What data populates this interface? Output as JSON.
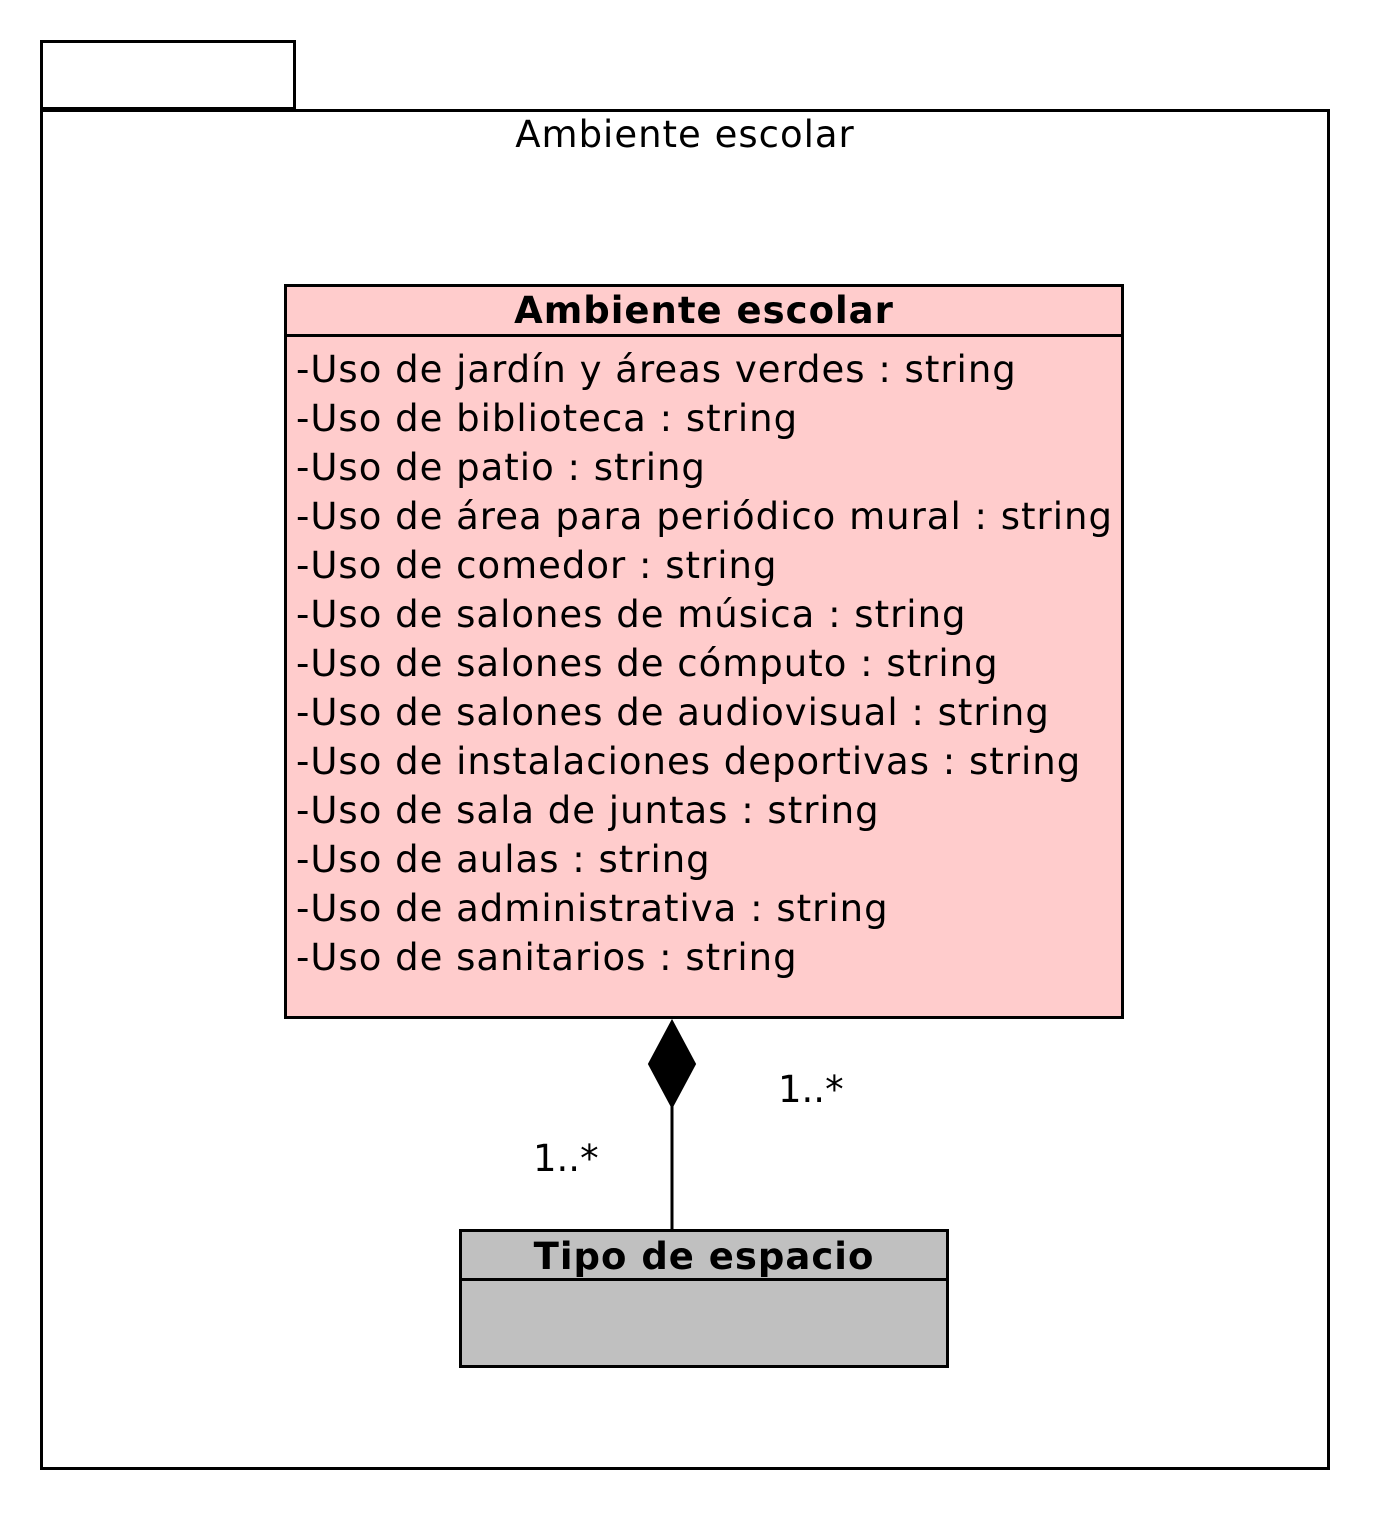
{
  "package": {
    "name": "Ambiente escolar"
  },
  "classes": {
    "main": {
      "title": "Ambiente escolar",
      "fill": "#ffcccc",
      "attributes": [
        "-Uso de jardín y áreas verdes : string",
        "-Uso de biblioteca : string",
        "-Uso de patio : string",
        "-Uso de área para periódico mural : string",
        "-Uso de comedor : string",
        "-Uso de salones de música : string",
        "-Uso de salones de cómputo : string",
        "-Uso de salones de audiovisual : string",
        "-Uso de instalaciones deportivas : string",
        "-Uso de sala de juntas : string",
        "-Uso de aulas : string",
        "-Uso de administrativa : string",
        "-Uso de sanitarios : string"
      ]
    },
    "secondary": {
      "title": "Tipo de espacio",
      "fill": "#c0c0c0"
    }
  },
  "association": {
    "type": "composition",
    "multiplicity_whole": "1..*",
    "multiplicity_part": "1..*"
  }
}
